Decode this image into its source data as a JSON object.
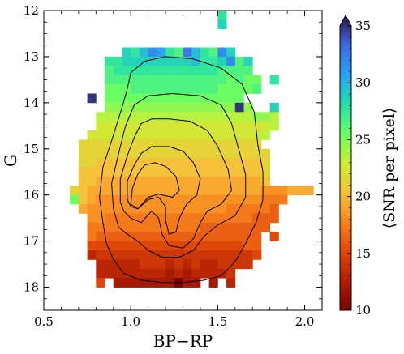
{
  "chart_data": {
    "type": "heatmap",
    "xlabel": "BP−RP",
    "ylabel": "G",
    "xlim": [
      0.5,
      2.1
    ],
    "ylim": [
      18.5,
      12.0
    ],
    "y_inverted": true,
    "x_ticks": [
      0.5,
      1.0,
      1.5,
      2.0
    ],
    "x_tick_labels": [
      "0.5",
      "1.0",
      "1.5",
      "2.0"
    ],
    "y_ticks": [
      12,
      13,
      14,
      15,
      16,
      17,
      18
    ],
    "y_tick_labels": [
      "12",
      "13",
      "14",
      "15",
      "16",
      "17",
      "18"
    ],
    "colorbar": {
      "label": "⟨SNR per pixel⟩",
      "range": [
        10,
        35
      ],
      "ticks": [
        10,
        15,
        20,
        25,
        30,
        35
      ],
      "tick_labels": [
        "10",
        "15",
        "20",
        "25",
        "30",
        "35"
      ],
      "extend": "max",
      "colormap": "turbo"
    },
    "bin_size": {
      "x": 0.05,
      "y": 0.2
    },
    "x_bins_start": 0.65,
    "y_bins_start": 12.0,
    "cell_layout": "Each row lists SNR values for consecutive BP-RP bins starting at x_start; null = empty bin.",
    "rows": [
      {
        "g_top": 12.0,
        "x_start": 1.5,
        "snr": [
          27
        ]
      },
      {
        "g_top": 12.2,
        "x_start": 1.5,
        "snr": [
          28
        ]
      },
      {
        "g_top": 12.8,
        "x_start": 0.95,
        "snr": [
          28,
          27,
          29,
          31,
          30,
          27,
          26,
          32,
          29,
          27,
          26,
          31,
          28
        ]
      },
      {
        "g_top": 13.0,
        "x_start": 0.85,
        "snr": [
          27,
          27,
          28,
          28,
          28,
          28,
          28,
          28,
          28,
          28,
          29,
          27,
          27,
          28,
          31,
          26,
          28
        ]
      },
      {
        "g_top": 13.2,
        "x_start": 0.85,
        "snr": [
          26,
          27,
          27,
          27,
          27,
          27,
          27,
          27,
          27,
          27,
          27,
          27,
          27,
          26,
          26,
          26,
          26
        ]
      },
      {
        "g_top": 13.4,
        "x_start": 0.85,
        "snr": [
          26,
          26,
          26,
          26,
          26,
          26,
          26,
          26,
          26,
          26,
          26,
          26,
          26,
          26,
          25,
          26,
          25,
          25,
          null,
          27
        ]
      },
      {
        "g_top": 13.6,
        "x_start": 0.85,
        "snr": [
          25,
          25,
          25,
          26,
          26,
          26,
          26,
          26,
          26,
          26,
          26,
          26,
          26,
          25,
          25,
          25,
          25,
          26
        ]
      },
      {
        "g_top": 13.8,
        "x_start": 0.75,
        "snr": [
          34,
          null,
          25,
          25,
          25,
          25,
          25,
          25,
          25,
          25,
          25,
          25,
          25,
          25,
          25,
          25,
          25,
          25
        ]
      },
      {
        "g_top": 14.0,
        "x_start": 0.85,
        "snr": [
          24,
          24,
          24,
          24,
          24,
          24,
          24,
          24,
          24,
          24,
          24,
          24,
          24,
          24,
          24,
          34,
          24,
          null,
          null,
          28
        ]
      },
      {
        "g_top": 14.2,
        "x_start": 0.8,
        "snr": [
          23,
          23,
          23,
          23,
          23,
          23,
          23,
          23,
          23,
          23,
          23,
          23,
          23,
          23,
          23,
          23,
          23,
          23,
          24,
          24,
          23
        ]
      },
      {
        "g_top": 14.4,
        "x_start": 0.8,
        "snr": [
          22,
          22,
          22,
          22,
          22,
          22,
          22,
          22,
          22,
          22,
          22,
          22,
          22,
          22,
          22,
          22,
          22,
          22,
          22,
          22,
          23
        ]
      },
      {
        "g_top": 14.6,
        "x_start": 0.75,
        "snr": [
          22,
          22,
          22,
          22,
          22,
          22,
          22,
          22,
          22,
          22,
          22,
          22,
          22,
          22,
          22,
          22,
          22,
          22,
          22,
          22,
          23
        ]
      },
      {
        "g_top": 14.8,
        "x_start": 0.7,
        "snr": [
          21,
          21,
          21,
          21,
          21,
          21,
          21,
          21,
          21,
          21,
          21,
          21,
          21,
          21,
          21,
          21,
          21,
          21,
          21,
          21,
          21
        ]
      },
      {
        "g_top": 15.0,
        "x_start": 0.7,
        "snr": [
          21,
          21,
          21,
          21,
          21,
          21,
          21,
          21,
          21,
          21,
          21,
          21,
          21,
          21,
          21,
          21,
          21,
          21,
          21,
          21,
          21,
          21
        ]
      },
      {
        "g_top": 15.2,
        "x_start": 0.7,
        "snr": [
          21,
          21,
          20,
          20,
          20,
          20,
          20,
          20,
          20,
          20,
          20,
          20,
          20,
          20,
          20,
          20,
          20,
          20,
          20,
          20,
          20,
          21
        ]
      },
      {
        "g_top": 15.4,
        "x_start": 0.7,
        "snr": [
          20,
          20,
          20,
          20,
          20,
          20,
          20,
          20,
          20,
          20,
          20,
          20,
          20,
          20,
          20,
          20,
          20,
          20,
          20,
          20,
          20,
          21
        ]
      },
      {
        "g_top": 15.6,
        "x_start": 0.7,
        "snr": [
          20,
          20,
          19,
          19,
          19,
          19,
          19,
          19,
          19,
          19,
          19,
          19,
          19,
          19,
          19,
          19,
          19,
          19,
          19,
          19,
          19,
          20
        ]
      },
      {
        "g_top": 15.8,
        "x_start": 0.65,
        "snr": [
          21,
          20,
          19,
          19,
          19,
          19,
          19,
          19,
          19,
          19,
          19,
          19,
          19,
          19,
          19,
          19,
          19,
          19,
          19,
          19,
          19,
          19,
          18,
          18,
          18,
          19,
          19,
          19
        ]
      },
      {
        "g_top": 16.0,
        "x_start": 0.65,
        "snr": [
          25,
          20,
          19,
          18,
          18,
          18,
          18,
          18,
          18,
          18,
          18,
          18,
          18,
          18,
          18,
          18,
          18,
          18,
          18,
          18,
          18,
          18,
          17,
          17,
          17
        ]
      },
      {
        "g_top": 16.2,
        "x_start": 0.7,
        "snr": [
          19,
          18,
          18,
          18,
          18,
          18,
          18,
          18,
          18,
          18,
          18,
          18,
          18,
          18,
          18,
          18,
          18,
          17,
          17,
          17,
          17,
          17,
          16
        ]
      },
      {
        "g_top": 16.4,
        "x_start": 0.75,
        "snr": [
          18,
          18,
          17,
          17,
          17,
          17,
          17,
          17,
          17,
          17,
          17,
          17,
          17,
          17,
          17,
          17,
          17,
          17,
          17,
          16,
          16,
          16
        ]
      },
      {
        "g_top": 16.6,
        "x_start": 0.75,
        "snr": [
          17,
          17,
          17,
          17,
          17,
          17,
          17,
          17,
          17,
          17,
          17,
          17,
          17,
          16,
          16,
          16,
          16,
          16,
          16,
          16,
          16
        ]
      },
      {
        "g_top": 16.8,
        "x_start": 0.75,
        "snr": [
          17,
          16,
          16,
          16,
          16,
          16,
          16,
          16,
          16,
          16,
          16,
          16,
          16,
          16,
          16,
          16,
          16,
          16,
          16,
          16,
          null,
          15
        ]
      },
      {
        "g_top": 17.0,
        "x_start": 0.75,
        "snr": [
          15,
          15,
          15,
          15,
          15,
          15,
          15,
          15,
          15,
          15,
          15,
          15,
          15,
          15,
          15,
          15,
          15,
          15,
          16,
          16
        ]
      },
      {
        "g_top": 17.2,
        "x_start": 0.75,
        "snr": [
          13,
          14,
          14,
          14,
          14,
          14,
          14,
          14,
          14,
          14,
          14,
          14,
          14,
          14,
          14,
          14,
          14,
          14,
          14,
          15
        ]
      },
      {
        "g_top": 17.4,
        "x_start": 0.8,
        "snr": [
          13,
          13,
          13,
          13,
          13,
          14,
          14,
          14,
          13,
          14,
          13,
          14,
          13,
          13,
          14,
          14,
          14,
          14
        ]
      },
      {
        "g_top": 17.6,
        "x_start": 0.8,
        "snr": [
          13,
          13,
          13,
          13,
          13,
          13,
          13,
          13,
          12,
          13,
          12,
          13,
          13,
          13,
          13,
          14
        ]
      },
      {
        "g_top": 17.8,
        "x_start": 0.8,
        "snr": [
          15,
          null,
          12,
          12,
          12,
          12,
          12,
          12,
          12,
          10,
          12,
          12,
          null,
          12,
          null,
          13
        ]
      }
    ],
    "contours": [
      [
        [
          0.84,
          16.6
        ],
        [
          0.82,
          16.05
        ],
        [
          0.84,
          15.4
        ],
        [
          0.9,
          14.7
        ],
        [
          0.95,
          14.1
        ],
        [
          0.98,
          13.7
        ],
        [
          1.0,
          13.35
        ],
        [
          1.08,
          13.1
        ],
        [
          1.2,
          13.0
        ],
        [
          1.36,
          13.05
        ],
        [
          1.52,
          13.25
        ],
        [
          1.64,
          13.6
        ],
        [
          1.71,
          14.2
        ],
        [
          1.73,
          14.9
        ],
        [
          1.76,
          15.5
        ],
        [
          1.76,
          16.1
        ],
        [
          1.72,
          16.6
        ],
        [
          1.66,
          17.05
        ],
        [
          1.6,
          17.45
        ],
        [
          1.52,
          17.75
        ],
        [
          1.42,
          17.85
        ],
        [
          1.3,
          17.9
        ],
        [
          1.18,
          17.9
        ],
        [
          1.06,
          17.85
        ],
        [
          0.96,
          17.7
        ],
        [
          0.9,
          17.4
        ],
        [
          0.86,
          17.05
        ],
        [
          0.84,
          16.6
        ]
      ],
      [
        [
          0.9,
          16.3
        ],
        [
          0.89,
          15.75
        ],
        [
          0.93,
          15.1
        ],
        [
          0.97,
          14.5
        ],
        [
          1.02,
          14.05
        ],
        [
          1.1,
          13.85
        ],
        [
          1.24,
          13.8
        ],
        [
          1.4,
          13.85
        ],
        [
          1.52,
          14.05
        ],
        [
          1.58,
          14.45
        ],
        [
          1.62,
          15.0
        ],
        [
          1.66,
          15.55
        ],
        [
          1.66,
          16.05
        ],
        [
          1.6,
          16.45
        ],
        [
          1.5,
          16.65
        ],
        [
          1.42,
          16.9
        ],
        [
          1.36,
          17.2
        ],
        [
          1.28,
          17.35
        ],
        [
          1.18,
          17.35
        ],
        [
          1.1,
          17.2
        ],
        [
          1.04,
          17.0
        ],
        [
          0.98,
          16.85
        ],
        [
          0.93,
          16.7
        ],
        [
          0.9,
          16.3
        ]
      ],
      [
        [
          0.94,
          16.15
        ],
        [
          0.94,
          15.65
        ],
        [
          0.98,
          15.15
        ],
        [
          1.02,
          14.75
        ],
        [
          1.06,
          14.45
        ],
        [
          1.12,
          14.35
        ],
        [
          1.22,
          14.35
        ],
        [
          1.34,
          14.4
        ],
        [
          1.44,
          14.6
        ],
        [
          1.5,
          14.95
        ],
        [
          1.56,
          15.45
        ],
        [
          1.58,
          15.9
        ],
        [
          1.52,
          16.2
        ],
        [
          1.44,
          16.35
        ],
        [
          1.4,
          16.6
        ],
        [
          1.36,
          16.95
        ],
        [
          1.3,
          17.15
        ],
        [
          1.22,
          17.1
        ],
        [
          1.18,
          16.85
        ],
        [
          1.16,
          16.5
        ],
        [
          1.12,
          16.35
        ],
        [
          1.06,
          16.6
        ],
        [
          1.0,
          16.5
        ],
        [
          0.96,
          16.35
        ],
        [
          0.94,
          16.15
        ]
      ],
      [
        [
          0.98,
          16.1
        ],
        [
          0.98,
          15.7
        ],
        [
          1.02,
          15.35
        ],
        [
          1.06,
          15.1
        ],
        [
          1.12,
          14.95
        ],
        [
          1.22,
          14.95
        ],
        [
          1.3,
          15.05
        ],
        [
          1.36,
          15.3
        ],
        [
          1.4,
          15.65
        ],
        [
          1.38,
          16.0
        ],
        [
          1.32,
          16.2
        ],
        [
          1.28,
          16.5
        ],
        [
          1.26,
          16.8
        ],
        [
          1.22,
          16.85
        ],
        [
          1.2,
          16.55
        ],
        [
          1.2,
          16.25
        ],
        [
          1.16,
          16.05
        ],
        [
          1.1,
          16.1
        ],
        [
          1.04,
          16.3
        ],
        [
          1.0,
          16.25
        ],
        [
          0.98,
          16.1
        ]
      ],
      [
        [
          1.0,
          16.2
        ],
        [
          1.01,
          15.85
        ],
        [
          1.04,
          15.55
        ],
        [
          1.08,
          15.35
        ],
        [
          1.14,
          15.3
        ],
        [
          1.2,
          15.38
        ],
        [
          1.26,
          15.6
        ],
        [
          1.28,
          15.9
        ],
        [
          1.24,
          16.05
        ],
        [
          1.16,
          15.98
        ],
        [
          1.1,
          16.05
        ],
        [
          1.04,
          16.3
        ],
        [
          1.0,
          16.2
        ]
      ]
    ]
  }
}
